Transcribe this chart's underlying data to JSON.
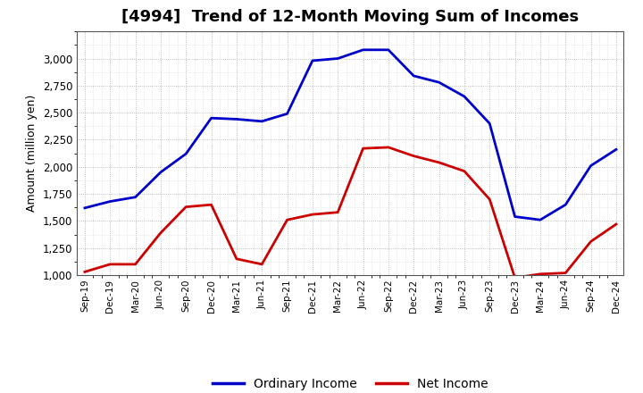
{
  "title": "[4994]  Trend of 12-Month Moving Sum of Incomes",
  "ylabel": "Amount (million yen)",
  "x_labels": [
    "Sep-19",
    "Dec-19",
    "Mar-20",
    "Jun-20",
    "Sep-20",
    "Dec-20",
    "Mar-21",
    "Jun-21",
    "Sep-21",
    "Dec-21",
    "Mar-22",
    "Jun-22",
    "Sep-22",
    "Dec-22",
    "Mar-23",
    "Jun-23",
    "Sep-23",
    "Dec-23",
    "Mar-24",
    "Jun-24",
    "Sep-24",
    "Dec-24"
  ],
  "ordinary_income": [
    1620,
    1680,
    1720,
    1950,
    2120,
    2450,
    2440,
    2420,
    2490,
    2980,
    3000,
    3080,
    3080,
    2840,
    2780,
    2650,
    2400,
    1540,
    1510,
    1650,
    2010,
    2160
  ],
  "net_income": [
    1030,
    1100,
    1100,
    1390,
    1630,
    1650,
    1150,
    1100,
    1510,
    1560,
    1580,
    2170,
    2180,
    2100,
    2040,
    1960,
    1700,
    975,
    1010,
    1020,
    1310,
    1470
  ],
  "ordinary_income_color": "#0000cc",
  "net_income_color": "#cc0000",
  "ylim_min": 1000,
  "ylim_max": 3250,
  "yticks": [
    1000,
    1250,
    1500,
    1750,
    2000,
    2250,
    2500,
    2750,
    3000
  ],
  "bg_color": "#ffffff",
  "plot_bg_color": "#ffffff",
  "grid_color": "#aaaaaa",
  "line_width": 2.0,
  "title_fontsize": 13,
  "legend_labels": [
    "Ordinary Income",
    "Net Income"
  ]
}
